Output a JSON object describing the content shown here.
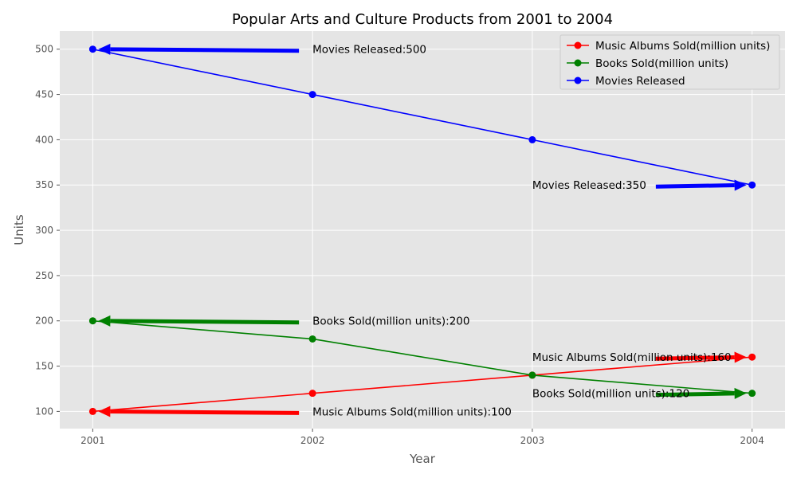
{
  "chart_data": {
    "type": "line",
    "title": "Popular Arts and Culture Products from 2001 to 2004",
    "xlabel": "Year",
    "ylabel": "Units",
    "x": [
      2001,
      2002,
      2003,
      2004
    ],
    "xlim": [
      2000.85,
      2004.15
    ],
    "ylim": [
      81,
      520
    ],
    "yticks": [
      100,
      150,
      200,
      250,
      300,
      350,
      400,
      450,
      500
    ],
    "grid": true,
    "legend_position": "top-right",
    "series": [
      {
        "name": "Music Albums Sold(million units)",
        "color": "#ff0000",
        "values": [
          100,
          120,
          140,
          160
        ]
      },
      {
        "name": "Books Sold(million units)",
        "color": "#008000",
        "values": [
          200,
          180,
          140,
          120
        ]
      },
      {
        "name": "Movies Released",
        "color": "#0000ff",
        "values": [
          500,
          450,
          400,
          350
        ]
      }
    ],
    "annotations": [
      {
        "text": "Movies Released:500",
        "series": 2,
        "point_index": 0,
        "text_x": 2002,
        "text_y": 500
      },
      {
        "text": "Movies Released:350",
        "series": 2,
        "point_index": 3,
        "text_x": 2003,
        "text_y": 350
      },
      {
        "text": "Books Sold(million units):200",
        "series": 1,
        "point_index": 0,
        "text_x": 2002,
        "text_y": 200
      },
      {
        "text": "Books Sold(million units):120",
        "series": 1,
        "point_index": 3,
        "text_x": 2003,
        "text_y": 120
      },
      {
        "text": "Music Albums Sold(million units):160",
        "series": 0,
        "point_index": 3,
        "text_x": 2003,
        "text_y": 160
      },
      {
        "text": "Music Albums Sold(million units):100",
        "series": 0,
        "point_index": 0,
        "text_x": 2002,
        "text_y": 100
      }
    ]
  }
}
